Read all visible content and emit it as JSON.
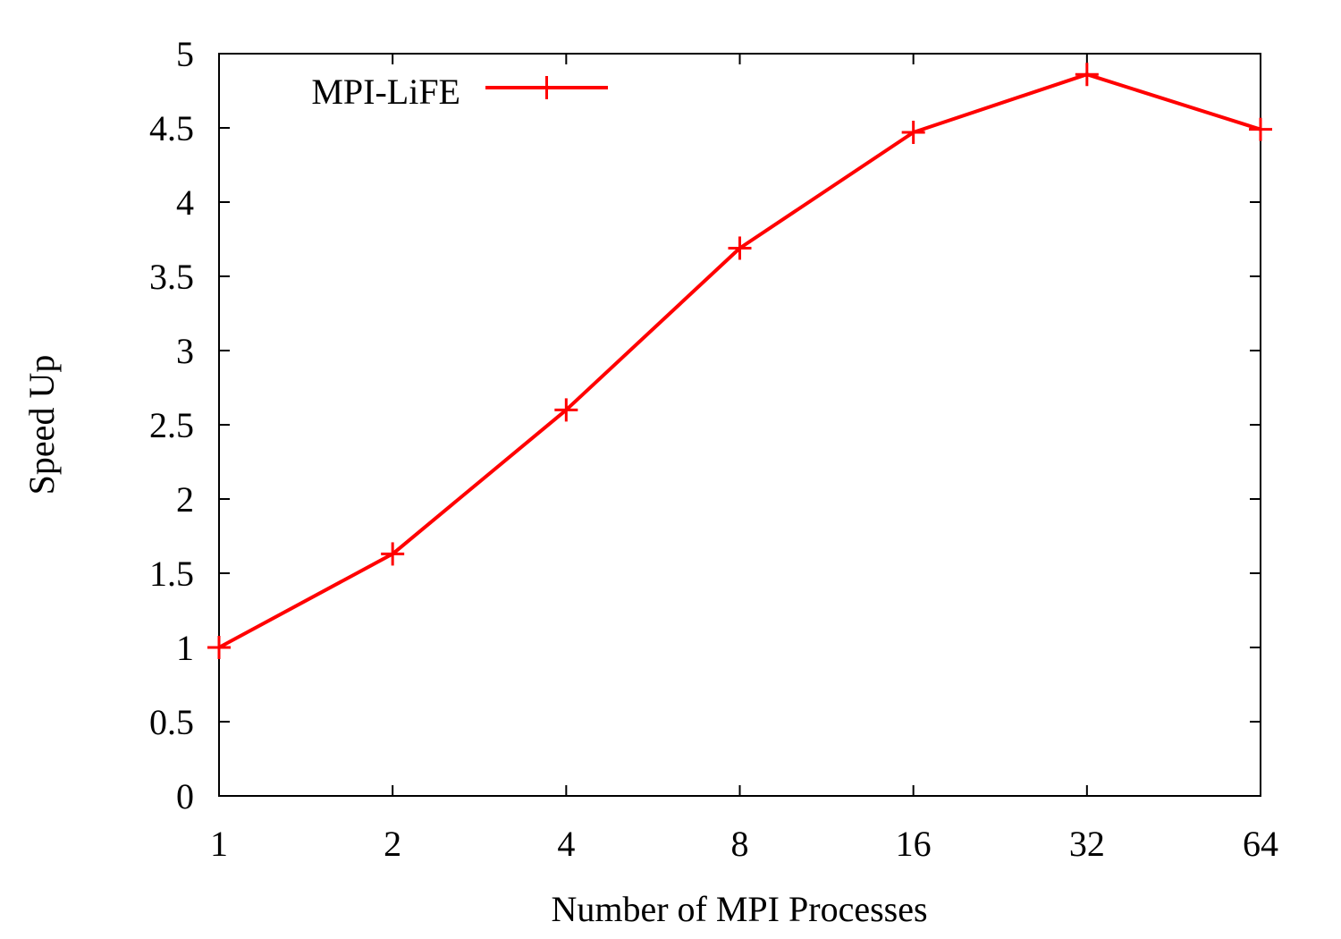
{
  "chart_data": {
    "type": "line",
    "xlabel": "Number of MPI Processes",
    "ylabel": "Speed Up",
    "x_scale": "log2",
    "categories": [
      "1",
      "2",
      "4",
      "8",
      "16",
      "32",
      "64"
    ],
    "x": [
      1,
      2,
      4,
      8,
      16,
      32,
      64
    ],
    "yticks": [
      "0",
      "0.5",
      "1",
      "1.5",
      "2",
      "2.5",
      "3",
      "3.5",
      "4",
      "4.5",
      "5"
    ],
    "ylim": [
      0,
      5
    ],
    "grid": false,
    "legend_position": "top-left",
    "series": [
      {
        "name": "MPI-LiFE",
        "color": "#ff0000",
        "marker": "plus",
        "values": [
          1.0,
          1.63,
          2.6,
          3.69,
          4.47,
          4.86,
          4.49
        ]
      }
    ]
  }
}
